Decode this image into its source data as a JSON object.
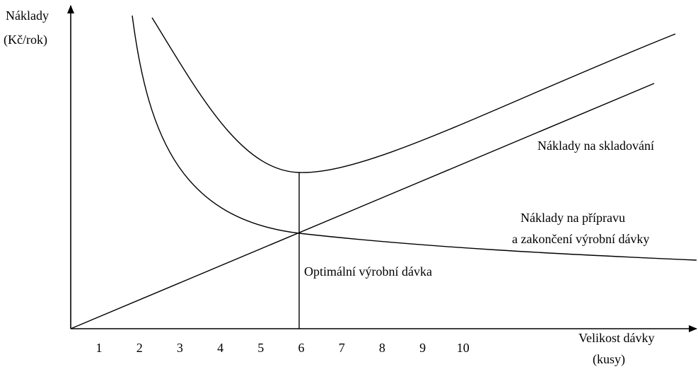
{
  "y_axis": {
    "label_lines": [
      "Náklady",
      "(Kč/rok)"
    ]
  },
  "x_axis": {
    "label_lines": [
      "Velikost dávky",
      "(kusy)"
    ],
    "ticks": [
      1,
      2,
      3,
      4,
      5,
      6,
      7,
      8,
      9,
      10
    ]
  },
  "curves": {
    "storage": {
      "label": "Náklady na skladování"
    },
    "setup": {
      "label_lines": [
        "Náklady na přípravu",
        "a zakončení výrobní dávky"
      ]
    },
    "optimum": {
      "label": "Optimální výrobní dávka"
    }
  }
}
